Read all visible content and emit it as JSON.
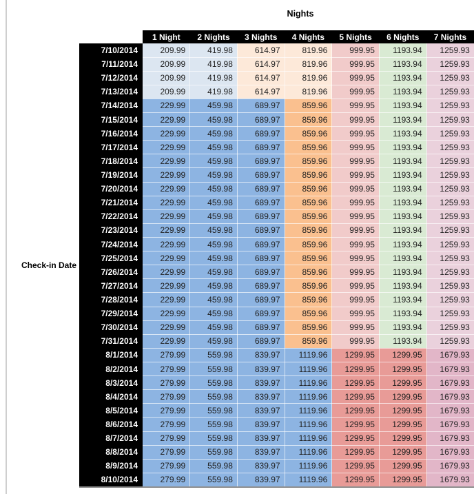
{
  "title": "Nights",
  "row_axis_label": "Check-in Date",
  "columns": [
    "1 Night",
    "2 Nights",
    "3 Nights",
    "4 Nights",
    "5 Nights",
    "6 Nights",
    "7 Nights"
  ],
  "colors": {
    "header_bg": "#000000",
    "header_text": "#ffffff",
    "date_cell_bg": "#000000",
    "value_text": "#1f1f1f",
    "light_blue": "#DCE6F1",
    "medium_blue": "#8DB4E2",
    "light_orange": "#FDE9D9",
    "medium_orange": "#FAC08F",
    "light_red": "#F1CBCA",
    "light_green": "#D9EAD3",
    "light_magenta": "#EAD1DC",
    "medium_red": "#E89B97",
    "medium_mauve": "#E2B6C8"
  },
  "palettes": {
    "early_july": [
      "#DCE6F1",
      "#DCE6F1",
      "#FDE9D9",
      "#FDE9D9",
      "#F1CBCA",
      "#D9EAD3",
      "#EAD1DC"
    ],
    "mid_july": [
      "#8DB4E2",
      "#8DB4E2",
      "#8DB4E2",
      "#FAC08F",
      "#F1CBCA",
      "#D9EAD3",
      "#EAD1DC"
    ],
    "august": [
      "#8DB4E2",
      "#8DB4E2",
      "#8DB4E2",
      "#8DB4E2",
      "#E89B97",
      "#E89B97",
      "#E2B6C8"
    ]
  },
  "rows": [
    {
      "date": "7/10/2014",
      "palette": "early_july",
      "values": [
        "209.99",
        "419.98",
        "614.97",
        "819.96",
        "999.95",
        "1193.94",
        "1259.93"
      ]
    },
    {
      "date": "7/11/2014",
      "palette": "early_july",
      "values": [
        "209.99",
        "419.98",
        "614.97",
        "819.96",
        "999.95",
        "1193.94",
        "1259.93"
      ]
    },
    {
      "date": "7/12/2014",
      "palette": "early_july",
      "values": [
        "209.99",
        "419.98",
        "614.97",
        "819.96",
        "999.95",
        "1193.94",
        "1259.93"
      ]
    },
    {
      "date": "7/13/2014",
      "palette": "early_july",
      "values": [
        "209.99",
        "419.98",
        "614.97",
        "819.96",
        "999.95",
        "1193.94",
        "1259.93"
      ]
    },
    {
      "date": "7/14/2014",
      "palette": "mid_july",
      "values": [
        "229.99",
        "459.98",
        "689.97",
        "859.96",
        "999.95",
        "1193.94",
        "1259.93"
      ]
    },
    {
      "date": "7/15/2014",
      "palette": "mid_july",
      "values": [
        "229.99",
        "459.98",
        "689.97",
        "859.96",
        "999.95",
        "1193.94",
        "1259.93"
      ]
    },
    {
      "date": "7/16/2014",
      "palette": "mid_july",
      "values": [
        "229.99",
        "459.98",
        "689.97",
        "859.96",
        "999.95",
        "1193.94",
        "1259.93"
      ]
    },
    {
      "date": "7/17/2014",
      "palette": "mid_july",
      "values": [
        "229.99",
        "459.98",
        "689.97",
        "859.96",
        "999.95",
        "1193.94",
        "1259.93"
      ]
    },
    {
      "date": "7/18/2014",
      "palette": "mid_july",
      "values": [
        "229.99",
        "459.98",
        "689.97",
        "859.96",
        "999.95",
        "1193.94",
        "1259.93"
      ]
    },
    {
      "date": "7/19/2014",
      "palette": "mid_july",
      "values": [
        "229.99",
        "459.98",
        "689.97",
        "859.96",
        "999.95",
        "1193.94",
        "1259.93"
      ]
    },
    {
      "date": "7/20/2014",
      "palette": "mid_july",
      "values": [
        "229.99",
        "459.98",
        "689.97",
        "859.96",
        "999.95",
        "1193.94",
        "1259.93"
      ]
    },
    {
      "date": "7/21/2014",
      "palette": "mid_july",
      "values": [
        "229.99",
        "459.98",
        "689.97",
        "859.96",
        "999.95",
        "1193.94",
        "1259.93"
      ]
    },
    {
      "date": "7/22/2014",
      "palette": "mid_july",
      "values": [
        "229.99",
        "459.98",
        "689.97",
        "859.96",
        "999.95",
        "1193.94",
        "1259.93"
      ]
    },
    {
      "date": "7/23/2014",
      "palette": "mid_july",
      "values": [
        "229.99",
        "459.98",
        "689.97",
        "859.96",
        "999.95",
        "1193.94",
        "1259.93"
      ]
    },
    {
      "date": "7/24/2014",
      "palette": "mid_july",
      "values": [
        "229.99",
        "459.98",
        "689.97",
        "859.96",
        "999.95",
        "1193.94",
        "1259.93"
      ]
    },
    {
      "date": "7/25/2014",
      "palette": "mid_july",
      "values": [
        "229.99",
        "459.98",
        "689.97",
        "859.96",
        "999.95",
        "1193.94",
        "1259.93"
      ]
    },
    {
      "date": "7/26/2014",
      "palette": "mid_july",
      "values": [
        "229.99",
        "459.98",
        "689.97",
        "859.96",
        "999.95",
        "1193.94",
        "1259.93"
      ]
    },
    {
      "date": "7/27/2014",
      "palette": "mid_july",
      "values": [
        "229.99",
        "459.98",
        "689.97",
        "859.96",
        "999.95",
        "1193.94",
        "1259.93"
      ]
    },
    {
      "date": "7/28/2014",
      "palette": "mid_july",
      "values": [
        "229.99",
        "459.98",
        "689.97",
        "859.96",
        "999.95",
        "1193.94",
        "1259.93"
      ]
    },
    {
      "date": "7/29/2014",
      "palette": "mid_july",
      "values": [
        "229.99",
        "459.98",
        "689.97",
        "859.96",
        "999.95",
        "1193.94",
        "1259.93"
      ]
    },
    {
      "date": "7/30/2014",
      "palette": "mid_july",
      "values": [
        "229.99",
        "459.98",
        "689.97",
        "859.96",
        "999.95",
        "1193.94",
        "1259.93"
      ]
    },
    {
      "date": "7/31/2014",
      "palette": "mid_july",
      "values": [
        "229.99",
        "459.98",
        "689.97",
        "859.96",
        "999.95",
        "1193.94",
        "1259.93"
      ]
    },
    {
      "date": "8/1/2014",
      "palette": "august",
      "values": [
        "279.99",
        "559.98",
        "839.97",
        "1119.96",
        "1299.95",
        "1299.95",
        "1679.93"
      ]
    },
    {
      "date": "8/2/2014",
      "palette": "august",
      "values": [
        "279.99",
        "559.98",
        "839.97",
        "1119.96",
        "1299.95",
        "1299.95",
        "1679.93"
      ]
    },
    {
      "date": "8/3/2014",
      "palette": "august",
      "values": [
        "279.99",
        "559.98",
        "839.97",
        "1119.96",
        "1299.95",
        "1299.95",
        "1679.93"
      ]
    },
    {
      "date": "8/4/2014",
      "palette": "august",
      "values": [
        "279.99",
        "559.98",
        "839.97",
        "1119.96",
        "1299.95",
        "1299.95",
        "1679.93"
      ]
    },
    {
      "date": "8/5/2014",
      "palette": "august",
      "values": [
        "279.99",
        "559.98",
        "839.97",
        "1119.96",
        "1299.95",
        "1299.95",
        "1679.93"
      ]
    },
    {
      "date": "8/6/2014",
      "palette": "august",
      "values": [
        "279.99",
        "559.98",
        "839.97",
        "1119.96",
        "1299.95",
        "1299.95",
        "1679.93"
      ]
    },
    {
      "date": "8/7/2014",
      "palette": "august",
      "values": [
        "279.99",
        "559.98",
        "839.97",
        "1119.96",
        "1299.95",
        "1299.95",
        "1679.93"
      ]
    },
    {
      "date": "8/8/2014",
      "palette": "august",
      "values": [
        "279.99",
        "559.98",
        "839.97",
        "1119.96",
        "1299.95",
        "1299.95",
        "1679.93"
      ]
    },
    {
      "date": "8/9/2014",
      "palette": "august",
      "values": [
        "279.99",
        "559.98",
        "839.97",
        "1119.96",
        "1299.95",
        "1299.95",
        "1679.93"
      ]
    },
    {
      "date": "8/10/2014",
      "palette": "august",
      "values": [
        "279.99",
        "559.98",
        "839.97",
        "1119.96",
        "1299.95",
        "1299.95",
        "1679.93"
      ]
    }
  ]
}
